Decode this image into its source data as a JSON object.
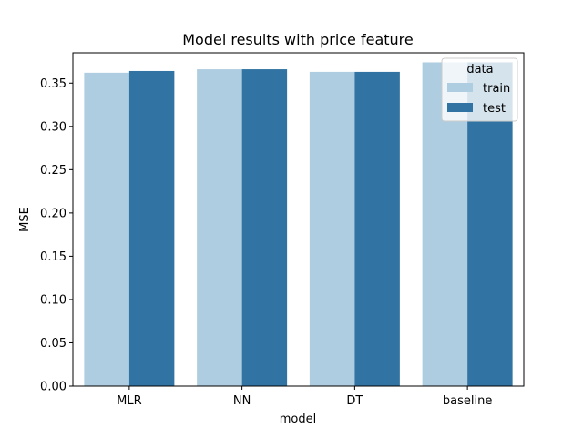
{
  "chart_data": {
    "type": "bar",
    "title": "Model results with price feature",
    "xlabel": "model",
    "ylabel": "MSE",
    "categories": [
      "MLR",
      "NN",
      "DT",
      "baseline"
    ],
    "series": [
      {
        "name": "train",
        "color": "#afcde0",
        "values": [
          0.362,
          0.366,
          0.363,
          0.374
        ]
      },
      {
        "name": "test",
        "color": "#3174a3",
        "values": [
          0.364,
          0.366,
          0.363,
          0.374
        ]
      }
    ],
    "ylim": [
      0,
      0.385
    ],
    "yticks": [
      "0.00",
      "0.05",
      "0.10",
      "0.15",
      "0.20",
      "0.25",
      "0.30",
      "0.35"
    ],
    "grid": false,
    "legend": {
      "title": "data",
      "position": "top-right"
    }
  }
}
